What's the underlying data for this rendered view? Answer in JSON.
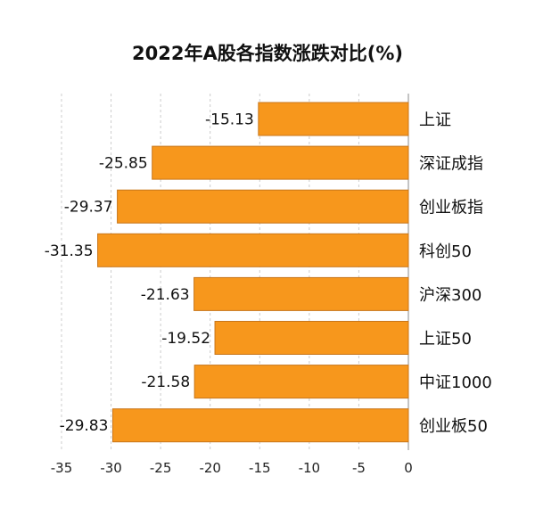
{
  "chart_data": {
    "type": "bar",
    "orientation": "horizontal",
    "title": "2022年A股各指数涨跌对比(%)",
    "categories": [
      "上证",
      "深证成指",
      "创业板指",
      "科创50",
      "沪深300",
      "上证50",
      "中证1000",
      "创业板50"
    ],
    "values": [
      -15.13,
      -25.85,
      -29.37,
      -31.35,
      -21.63,
      -19.52,
      -21.58,
      -29.83
    ],
    "data_labels": [
      "-15.13",
      "-25.85",
      "-29.37",
      "-31.35",
      "-21.63",
      "-19.52",
      "-21.58",
      "-29.83"
    ],
    "xlim": [
      -35,
      0
    ],
    "xticks": [
      "-35",
      "-30",
      "-25",
      "-20",
      "-15",
      "-10",
      "-5",
      "0"
    ],
    "grid": true,
    "bar_color": "#F7971C",
    "bar_edge_color": "#C8761A"
  }
}
